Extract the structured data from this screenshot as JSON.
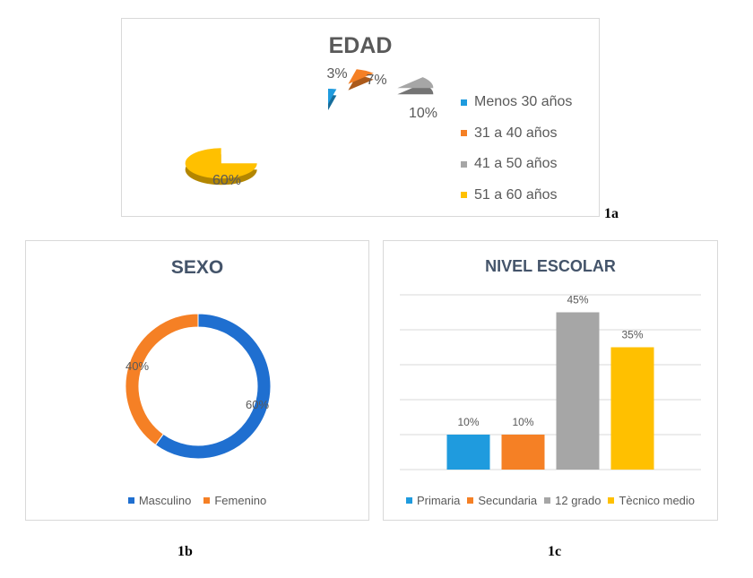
{
  "chart_data": [
    {
      "type": "pie",
      "title": "EDAD",
      "categories": [
        "Menos 30 años",
        "31 a 40 años",
        "41 a 50 años",
        "51 a 60 años"
      ],
      "values": [
        3,
        7,
        10,
        60
      ],
      "data_labels": [
        "3%",
        "7%",
        "10%",
        "60%"
      ],
      "colors": [
        "#1f9bde",
        "#f58025",
        "#a6a6a6",
        "#ffc000"
      ],
      "legend_position": "right",
      "exploded": true,
      "figure_label": "1a"
    },
    {
      "type": "pie",
      "style": "donut",
      "title": "SEXO",
      "categories": [
        "Masculino",
        "Femenino"
      ],
      "values": [
        60,
        40
      ],
      "data_labels": [
        "60%",
        "40%"
      ],
      "colors": [
        "#1f6fd0",
        "#f58025"
      ],
      "legend_position": "bottom",
      "figure_label": "1b"
    },
    {
      "type": "bar",
      "title": "NIVEL ESCOLAR",
      "categories": [
        "Primaria",
        "Secundaria",
        "12 grado",
        "Tècnico medio"
      ],
      "values": [
        10,
        10,
        45,
        35
      ],
      "data_labels": [
        "10%",
        "10%",
        "45%",
        "35%"
      ],
      "colors": [
        "#1f9bde",
        "#f58025",
        "#a6a6a6",
        "#ffc000"
      ],
      "ylim": [
        0,
        50
      ],
      "grid": true,
      "legend_position": "bottom",
      "figure_label": "1c"
    }
  ]
}
